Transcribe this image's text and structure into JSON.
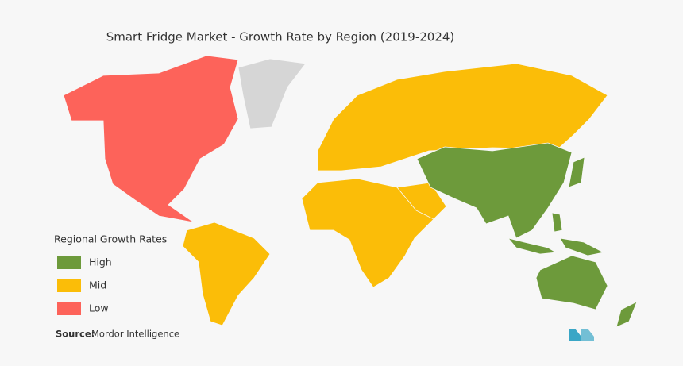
{
  "header": {
    "title": "Smart Fridge Market  - Growth Rate by Region (2019-2024)"
  },
  "legend": {
    "title": "Regional Growth Rates",
    "items": [
      {
        "label": "High",
        "color": "#6d9a3b"
      },
      {
        "label": "Mid",
        "color": "#fbbd08"
      },
      {
        "label": "Low",
        "color": "#fd635a"
      }
    ]
  },
  "source": {
    "label": "Source:",
    "text": "Mordor Intelligence"
  }
}
